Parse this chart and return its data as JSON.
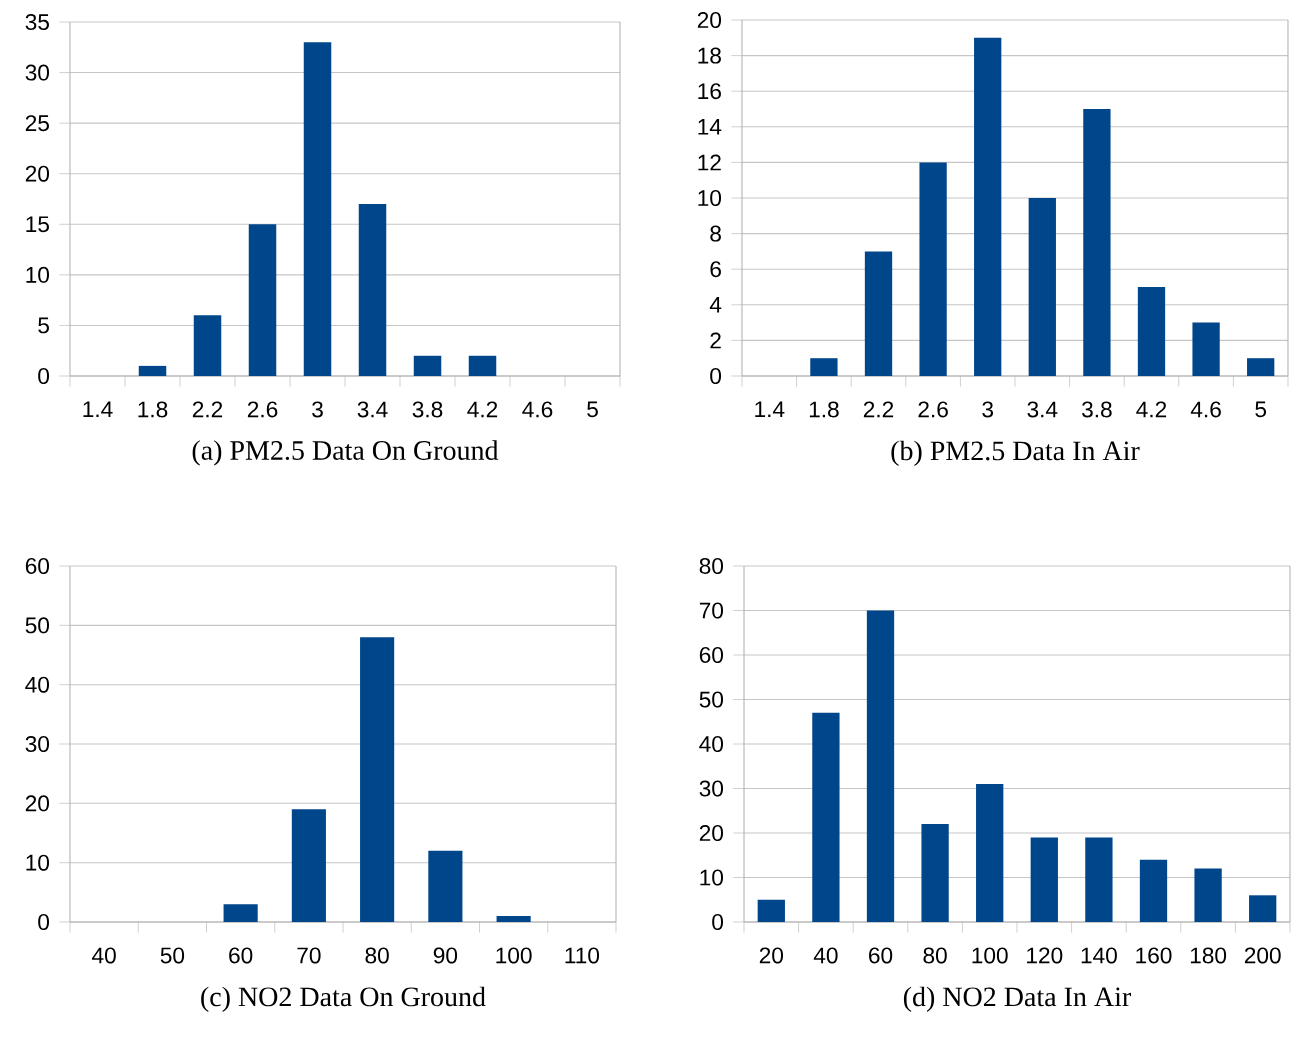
{
  "chart_data": [
    {
      "type": "bar",
      "title": "(a) PM2.5 Data On Ground",
      "categories": [
        "1.4",
        "1.8",
        "2.2",
        "2.6",
        "3",
        "3.4",
        "3.8",
        "4.2",
        "4.6",
        "5"
      ],
      "values": [
        0,
        1,
        6,
        15,
        33,
        17,
        2,
        2,
        0,
        0
      ],
      "color": "#00468b",
      "ylim": [
        0,
        35
      ],
      "yticks": [
        0,
        5,
        10,
        15,
        20,
        25,
        30,
        35
      ],
      "grid": "y"
    },
    {
      "type": "bar",
      "title": "(b) PM2.5 Data In Air",
      "categories": [
        "1.4",
        "1.8",
        "2.2",
        "2.6",
        "3",
        "3.4",
        "3.8",
        "4.2",
        "4.6",
        "5"
      ],
      "values": [
        0,
        1,
        7,
        12,
        19,
        10,
        15,
        5,
        3,
        1
      ],
      "color": "#00468b",
      "ylim": [
        0,
        20
      ],
      "yticks": [
        0,
        2,
        4,
        6,
        8,
        10,
        12,
        14,
        16,
        18,
        20
      ],
      "grid": "y"
    },
    {
      "type": "bar",
      "title": "(c) NO2 Data On Ground",
      "categories": [
        "40",
        "50",
        "60",
        "70",
        "80",
        "90",
        "100",
        "110"
      ],
      "values": [
        0,
        0,
        3,
        19,
        48,
        12,
        1,
        0
      ],
      "color": "#00468b",
      "ylim": [
        0,
        60
      ],
      "yticks": [
        0,
        10,
        20,
        30,
        40,
        50,
        60
      ],
      "grid": "y"
    },
    {
      "type": "bar",
      "title": "(d) NO2 Data In Air",
      "categories": [
        "20",
        "40",
        "60",
        "80",
        "100",
        "120",
        "140",
        "160",
        "180",
        "200"
      ],
      "values": [
        5,
        47,
        70,
        22,
        31,
        19,
        19,
        14,
        12,
        6
      ],
      "color": "#00468b",
      "ylim": [
        0,
        80
      ],
      "yticks": [
        0,
        10,
        20,
        30,
        40,
        50,
        60,
        70,
        80
      ],
      "grid": "y"
    }
  ]
}
